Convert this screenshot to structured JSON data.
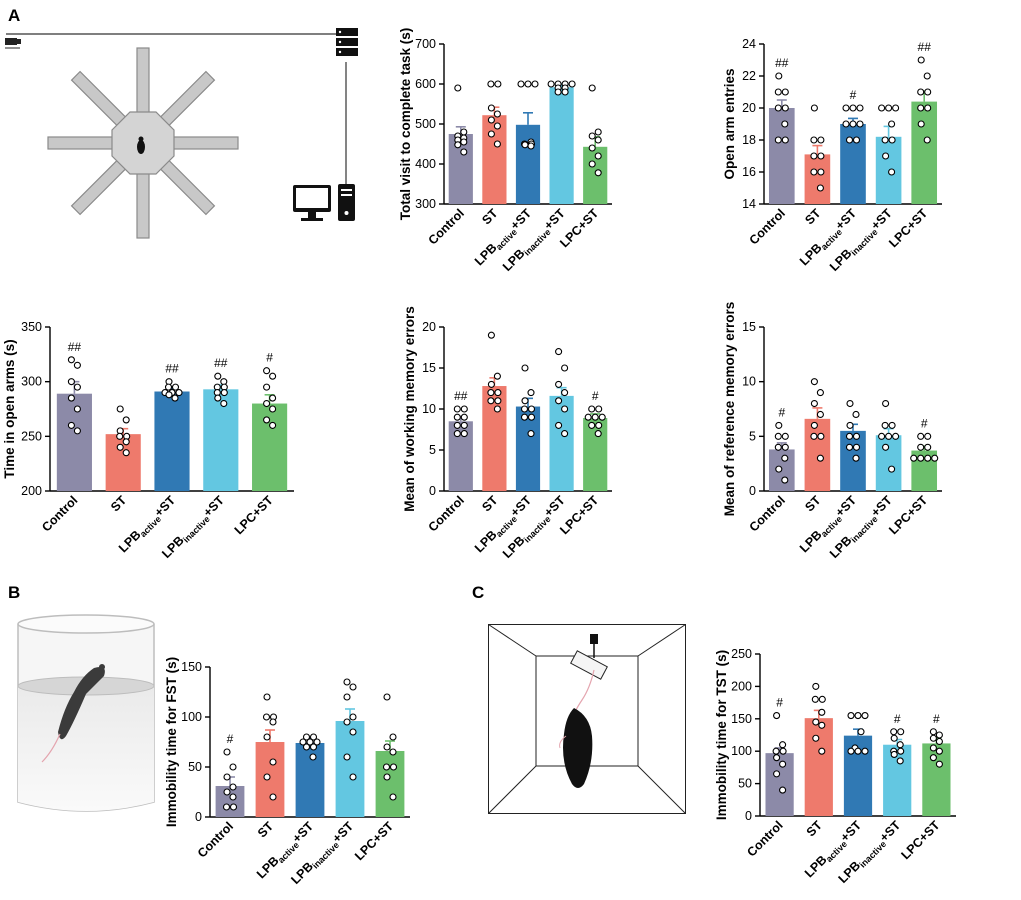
{
  "panels": {
    "a": "A",
    "b": "B",
    "c": "C"
  },
  "colors": {
    "Control": "#8c8aa8",
    "ST": "#ee7a6c",
    "LPB_active+ST": "#3079b4",
    "LPB_inactive+ST": "#63c7e1",
    "LPC+ST": "#6cbf6c"
  },
  "groups": [
    {
      "key": "Control",
      "main": "Control",
      "sub": "",
      "tail": ""
    },
    {
      "key": "ST",
      "main": "ST",
      "sub": "",
      "tail": ""
    },
    {
      "key": "LPB_active+ST",
      "main": "LPB",
      "sub": "active",
      "tail": "+ST"
    },
    {
      "key": "LPB_inactive+ST",
      "main": "LPB",
      "sub": "inactive",
      "tail": "+ST"
    },
    {
      "key": "LPC+ST",
      "main": "LPC+ST",
      "sub": "",
      "tail": ""
    }
  ],
  "chart_data": [
    {
      "id": "total-visit",
      "type": "bar",
      "ylabel": "Total visit to complete task (s)",
      "ylim": [
        300,
        700
      ],
      "yticks": [
        300,
        400,
        500,
        600,
        700
      ],
      "values": [
        475,
        522,
        498,
        592,
        443
      ],
      "errors": [
        18,
        20,
        30,
        8,
        25
      ],
      "points": [
        [
          590,
          480,
          470,
          465,
          460,
          455,
          448,
          430
        ],
        [
          600,
          600,
          540,
          525,
          510,
          495,
          475,
          450
        ],
        [
          600,
          600,
          600,
          455,
          450,
          450,
          448,
          445
        ],
        [
          600,
          600,
          600,
          600,
          590,
          590,
          580,
          580
        ],
        [
          590,
          480,
          470,
          460,
          440,
          420,
          400,
          378
        ]
      ],
      "sig": [
        "",
        "",
        "",
        "",
        ""
      ]
    },
    {
      "id": "open-arm-entries",
      "type": "bar",
      "ylabel": "Open arm entries",
      "ylim": [
        14,
        24
      ],
      "yticks": [
        14,
        16,
        18,
        20,
        22,
        24
      ],
      "values": [
        20,
        17.1,
        19,
        18.2,
        20.4
      ],
      "errors": [
        0.5,
        0.55,
        0.35,
        0.65,
        0.65
      ],
      "points": [
        [
          22,
          21,
          21,
          20,
          20,
          19,
          18,
          18
        ],
        [
          20,
          18,
          18,
          17,
          17,
          16,
          16,
          15
        ],
        [
          20,
          20,
          20,
          19,
          19,
          19,
          18,
          18
        ],
        [
          20,
          20,
          20,
          19,
          18,
          18,
          17,
          16
        ],
        [
          23,
          22,
          21,
          21,
          20,
          20,
          19,
          18
        ]
      ],
      "sig": [
        "##",
        "",
        "#",
        "",
        "##"
      ]
    },
    {
      "id": "time-open-arms",
      "type": "bar",
      "ylabel": "Time in open  arms (s)",
      "ylim": [
        200,
        350
      ],
      "yticks": [
        200,
        250,
        300,
        350
      ],
      "values": [
        289,
        252,
        291,
        293,
        280
      ],
      "errors": [
        11,
        5,
        3,
        4,
        8
      ],
      "points": [
        [
          320,
          315,
          300,
          295,
          285,
          275,
          260,
          255
        ],
        [
          275,
          265,
          255,
          250,
          250,
          245,
          240,
          235
        ],
        [
          300,
          295,
          295,
          290,
          290,
          290,
          288,
          285
        ],
        [
          305,
          300,
          295,
          295,
          290,
          290,
          285,
          280
        ],
        [
          310,
          305,
          295,
          285,
          280,
          275,
          265,
          260
        ]
      ],
      "sig": [
        "##",
        "",
        "##",
        "##",
        "#"
      ]
    },
    {
      "id": "working-memory",
      "type": "bar",
      "ylabel": "Mean of working memory errors",
      "ylim": [
        0,
        20
      ],
      "yticks": [
        0,
        5,
        10,
        15,
        20
      ],
      "values": [
        8.5,
        12.8,
        10.3,
        11.6,
        8.9
      ],
      "errors": [
        0.6,
        1,
        1,
        1,
        0.5
      ],
      "points": [
        [
          10,
          10,
          9,
          9,
          8,
          8,
          7,
          7
        ],
        [
          19,
          14,
          13,
          12,
          12,
          11,
          11,
          10
        ],
        [
          15,
          12,
          11,
          10,
          10,
          9,
          9,
          7
        ],
        [
          17,
          15,
          13,
          12,
          11,
          10,
          8,
          7
        ],
        [
          10,
          10,
          9,
          9,
          9,
          8,
          8,
          7
        ]
      ],
      "sig": [
        "##",
        "",
        "",
        "",
        "#"
      ]
    },
    {
      "id": "reference-memory",
      "type": "bar",
      "ylabel": "Mean of reference memory errors",
      "ylim": [
        0,
        15
      ],
      "yticks": [
        0,
        5,
        10,
        15
      ],
      "values": [
        3.8,
        6.6,
        5.5,
        5.1,
        3.7
      ],
      "errors": [
        0.6,
        1,
        0.6,
        0.6,
        0.4
      ],
      "points": [
        [
          6,
          5,
          5,
          4,
          4,
          3,
          2,
          1
        ],
        [
          10,
          9,
          8,
          7,
          6,
          5,
          5,
          3
        ],
        [
          8,
          7,
          6,
          5,
          5,
          4,
          4,
          3
        ],
        [
          8,
          6,
          6,
          5,
          5,
          5,
          4,
          2
        ],
        [
          5,
          5,
          4,
          4,
          3,
          3,
          3,
          3
        ]
      ],
      "sig": [
        "#",
        "",
        "",
        "",
        "#"
      ]
    },
    {
      "id": "fst",
      "type": "bar",
      "ylabel": "Immobility time for FST (s)",
      "ylim": [
        0,
        150
      ],
      "yticks": [
        0,
        50,
        100,
        150
      ],
      "values": [
        31,
        75,
        74,
        96,
        66
      ],
      "errors": [
        9,
        12,
        5,
        12,
        10
      ],
      "points": [
        [
          65,
          50,
          40,
          30,
          25,
          20,
          10,
          10
        ],
        [
          120,
          100,
          100,
          95,
          80,
          55,
          40,
          20
        ],
        [
          80,
          80,
          75,
          75,
          75,
          70,
          70,
          60
        ],
        [
          135,
          130,
          120,
          100,
          95,
          85,
          60,
          40
        ],
        [
          120,
          80,
          70,
          65,
          50,
          50,
          40,
          20
        ]
      ],
      "sig": [
        "#",
        "",
        "",
        "",
        ""
      ]
    },
    {
      "id": "tst",
      "type": "bar",
      "ylabel": "Immobility time for TST (s)",
      "ylim": [
        0,
        250
      ],
      "yticks": [
        0,
        50,
        100,
        150,
        200,
        250
      ],
      "values": [
        97,
        151,
        124,
        110,
        112
      ],
      "errors": [
        8,
        12,
        10,
        8,
        8
      ],
      "points": [
        [
          155,
          110,
          100,
          100,
          90,
          80,
          65,
          40
        ],
        [
          200,
          180,
          180,
          160,
          145,
          140,
          120,
          100
        ],
        [
          155,
          155,
          155,
          130,
          105,
          100,
          100,
          100
        ],
        [
          130,
          130,
          120,
          110,
          100,
          100,
          95,
          85
        ],
        [
          130,
          125,
          120,
          115,
          105,
          100,
          90,
          80
        ]
      ],
      "sig": [
        "#",
        "",
        "",
        "#",
        "#"
      ]
    }
  ]
}
